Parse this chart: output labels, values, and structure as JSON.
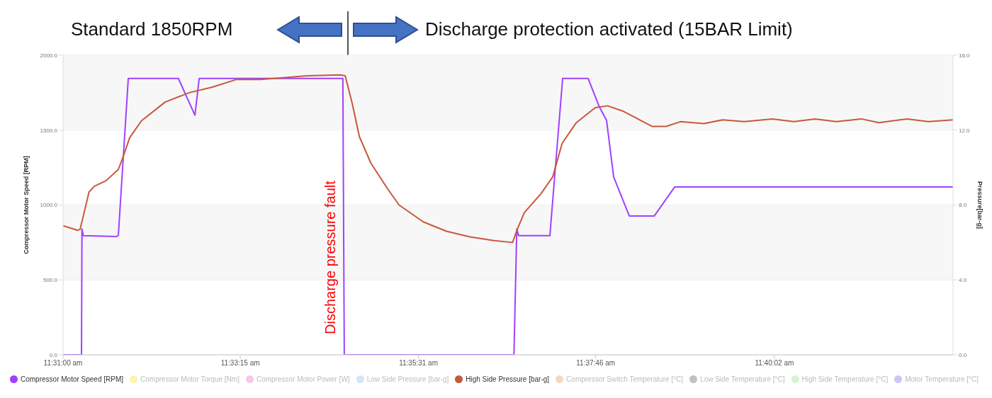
{
  "chart_data": {
    "type": "line",
    "ylabel": "Compressor Motor Speed [RPM]",
    "y2label": "Pressure[bar-g]",
    "annotations": [
      "Standard 1850RPM",
      "Discharge protection activated (15BAR Limit)",
      {
        "text": "Discharge pressure fault",
        "x": 11.5762,
        "y": 650
      }
    ],
    "xlim": [
      11.5167,
      11.705
    ],
    "xticks": [
      {
        "value": 11.5167,
        "label": "11:31:00 am"
      },
      {
        "value": 11.5542,
        "label": "11:33:15 am"
      },
      {
        "value": 11.5919,
        "label": "11:35:31 am"
      },
      {
        "value": 11.6294,
        "label": "11:37:46 am"
      },
      {
        "value": 11.6672,
        "label": "11:40:02 am"
      }
    ],
    "ylim": [
      0,
      2000
    ],
    "yticks": [
      {
        "value": 0,
        "label": "0.0"
      },
      {
        "value": 500,
        "label": "500.0"
      },
      {
        "value": 1000,
        "label": "1000.0"
      },
      {
        "value": 1500,
        "label": "1500.0"
      },
      {
        "value": 2000,
        "label": "2000.0"
      }
    ],
    "y2lim": [
      0,
      16
    ],
    "y2ticks": [
      {
        "value": 0,
        "label": "0.0"
      },
      {
        "value": 4,
        "label": "4.0"
      },
      {
        "value": 8,
        "label": "8.0"
      },
      {
        "value": 12,
        "label": "12.0"
      },
      {
        "value": 16,
        "label": "16.0"
      }
    ],
    "bands": [
      {
        "axis": "y",
        "from": 500,
        "to": 1000,
        "color": "#f7f7f7"
      },
      {
        "axis": "y",
        "from": 1500,
        "to": 2000,
        "color": "#f7f7f7"
      }
    ],
    "grid": "y",
    "legend": "bottom",
    "marker": "none",
    "line_style": "solid",
    "series": [
      {
        "name": "Compressor Motor Speed [RPM]",
        "color": "#a040ff",
        "x": [
          11.5167,
          11.5206,
          11.5207,
          11.521,
          11.5281,
          11.5284,
          11.5305,
          11.5411,
          11.5446,
          11.5455,
          11.5759,
          11.5762,
          11.6121,
          11.6127,
          11.6131,
          11.6197,
          11.6224,
          11.6278,
          11.6301,
          11.6317,
          11.6332,
          11.6365,
          11.6418,
          11.6461,
          11.705
        ],
        "values": [
          0,
          0,
          840,
          795,
          790,
          800,
          1845,
          1845,
          1600,
          1845,
          1845,
          0,
          0,
          840,
          795,
          795,
          1845,
          1845,
          1660,
          1565,
          1187,
          927,
          927,
          1120,
          1120
        ]
      },
      {
        "name": "Compressor Motor Torque [Nm]",
        "color": "#fff3b0"
      },
      {
        "name": "Compressor Motor Power [W]",
        "color": "#f7c6e8"
      },
      {
        "name": "Low Side Pressure [bar-g]",
        "color": "#d6e4f7"
      },
      {
        "name": "High Side Pressure [bar-g]",
        "color": "#c8583a",
        "axis": "y2",
        "x": [
          11.5167,
          11.5198,
          11.5203,
          11.5222,
          11.5233,
          11.5258,
          11.5284,
          11.5293,
          11.5308,
          11.5333,
          11.5383,
          11.5434,
          11.5483,
          11.5533,
          11.5584,
          11.5633,
          11.5683,
          11.5753,
          11.5764,
          11.5779,
          11.5794,
          11.5818,
          11.5854,
          11.5878,
          11.5929,
          11.5978,
          11.6028,
          11.6079,
          11.6118,
          11.6128,
          11.6143,
          11.6178,
          11.6203,
          11.6223,
          11.6253,
          11.6293,
          11.6319,
          11.6353,
          11.6413,
          11.6443,
          11.6473,
          11.6523,
          11.6563,
          11.6608,
          11.6668,
          11.6713,
          11.6758,
          11.6803,
          11.6856,
          11.6893,
          11.6953,
          11.6998,
          11.705
        ],
        "values": [
          6.9,
          6.65,
          6.7,
          8.7,
          9.0,
          9.3,
          9.9,
          10.5,
          11.6,
          12.5,
          13.5,
          14.0,
          14.3,
          14.7,
          14.7,
          14.8,
          14.9,
          14.95,
          14.9,
          13.4,
          11.65,
          10.25,
          8.85,
          8.0,
          7.1,
          6.6,
          6.3,
          6.1,
          6.0,
          6.7,
          7.6,
          8.6,
          9.5,
          11.3,
          12.4,
          13.2,
          13.3,
          13.0,
          12.2,
          12.2,
          12.45,
          12.35,
          12.55,
          12.45,
          12.6,
          12.45,
          12.6,
          12.45,
          12.6,
          12.4,
          12.6,
          12.45,
          12.55
        ]
      },
      {
        "name": "Compressor Switch Temperature [°C]",
        "color": "#f2d9c6"
      },
      {
        "name": "Low Side Temperature [°C]",
        "color": "#c0c0c0"
      },
      {
        "name": "High Side Temperature [°C]",
        "color": "#d4f5d0"
      },
      {
        "name": "Motor Temperature [°C]",
        "color": "#c9c9f7"
      }
    ]
  }
}
